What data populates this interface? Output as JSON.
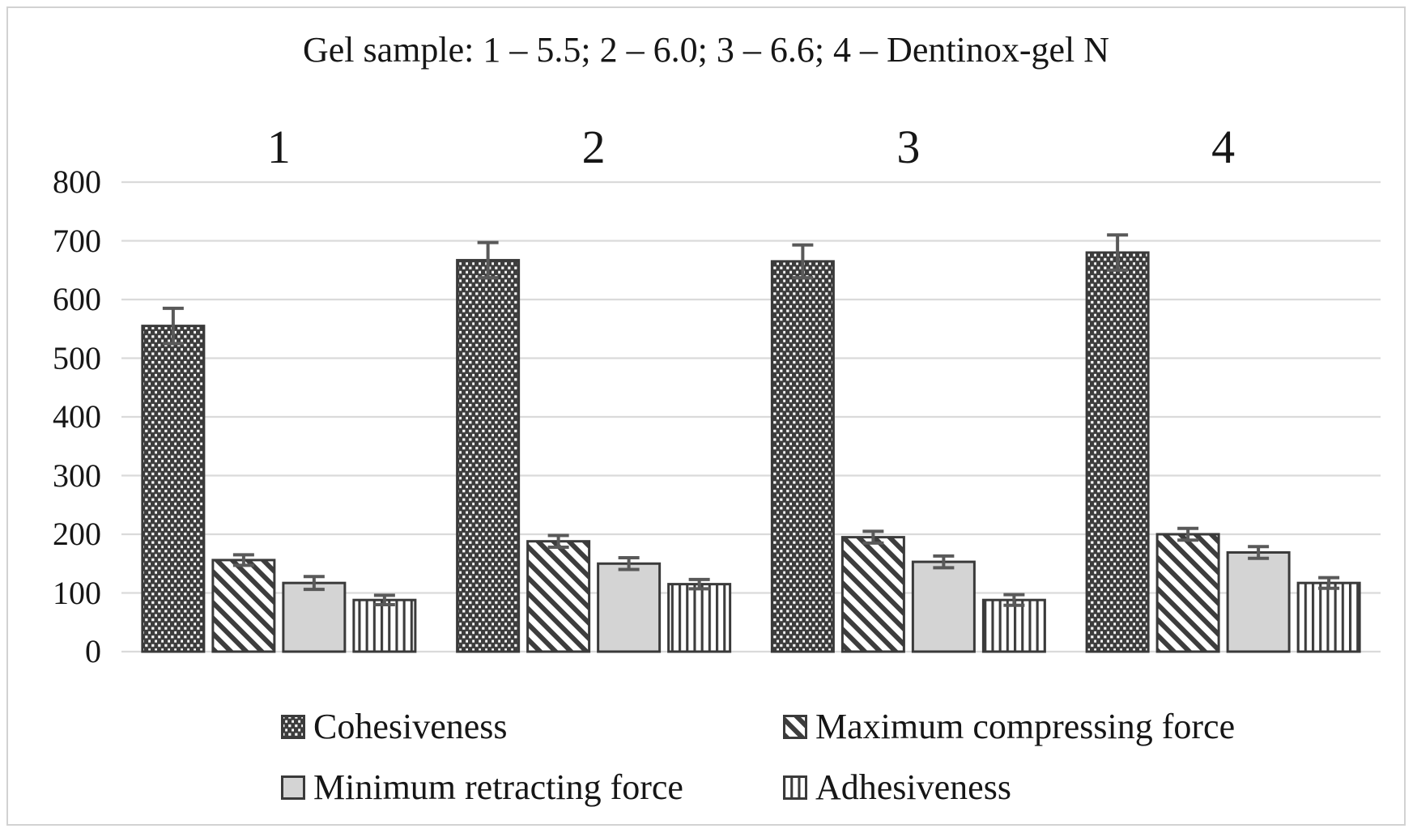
{
  "chart_data": {
    "type": "bar",
    "title": "Gel sample: 1 – 5.5; 2 – 6.0; 3 – 6.6; 4 – Dentinox-gel N",
    "categories": [
      "1",
      "2",
      "3",
      "4"
    ],
    "series": [
      {
        "name": "Cohesiveness",
        "pattern": "dots",
        "values": [
          555,
          667,
          665,
          680
        ],
        "errors": [
          30,
          30,
          28,
          30
        ]
      },
      {
        "name": "Maximum compressing force",
        "pattern": "diagonal-stripes",
        "values": [
          156,
          188,
          195,
          200
        ],
        "errors": [
          9,
          10,
          10,
          10
        ]
      },
      {
        "name": "Minimum retracting force",
        "pattern": "solid-gray",
        "values": [
          117,
          150,
          153,
          169
        ],
        "errors": [
          11,
          10,
          10,
          10
        ]
      },
      {
        "name": "Adhesiveness",
        "pattern": "vertical-stripes",
        "values": [
          88,
          115,
          88,
          117
        ],
        "errors": [
          8,
          8,
          9,
          9
        ]
      }
    ],
    "ylim": [
      0,
      800
    ],
    "y_ticks": [
      0,
      100,
      200,
      300,
      400,
      500,
      600,
      700,
      800
    ],
    "grid": true,
    "legend_position": "bottom",
    "colors": {
      "bar_dark": "#3d3d3d",
      "bar_stroke": "#3a3a3a",
      "bar_light_gray": "#d4d4d4",
      "gridline": "#dadada",
      "error_bar": "#595959",
      "text": "#161616"
    }
  }
}
